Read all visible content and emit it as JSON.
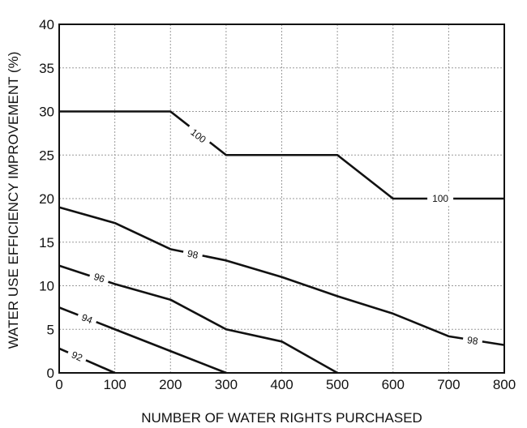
{
  "chart_data": {
    "type": "line",
    "xlabel": "NUMBER OF WATER RIGHTS PURCHASED",
    "ylabel": "WATER USE EFFICIENCY IMPROVEMENT (%)",
    "xlim": [
      0,
      800
    ],
    "ylim": [
      0,
      40
    ],
    "xticks": [
      0,
      100,
      200,
      300,
      400,
      500,
      600,
      700,
      800
    ],
    "yticks": [
      0,
      5,
      10,
      15,
      20,
      25,
      30,
      35,
      40
    ],
    "grid": true,
    "series": [
      {
        "name": "100",
        "x": [
          0,
          200,
          300,
          500,
          600,
          800
        ],
        "y": [
          30,
          30,
          25,
          25,
          20,
          20
        ],
        "labels": [
          {
            "text": "100",
            "x": 250,
            "y": 27.2
          },
          {
            "text": "100",
            "x": 685,
            "y": 20
          }
        ]
      },
      {
        "name": "98",
        "x": [
          0,
          100,
          200,
          300,
          400,
          500,
          600,
          700,
          800
        ],
        "y": [
          19,
          17.2,
          14.2,
          12.9,
          11,
          8.8,
          6.8,
          4.2,
          3.2
        ],
        "labels": [
          {
            "text": "98",
            "x": 240,
            "y": 13.6
          },
          {
            "text": "98",
            "x": 743,
            "y": 3.7
          }
        ]
      },
      {
        "name": "96",
        "x": [
          0,
          100,
          200,
          300,
          400,
          500
        ],
        "y": [
          12.3,
          10.2,
          8.4,
          5,
          3.6,
          0
        ],
        "labels": [
          {
            "text": "96",
            "x": 72,
            "y": 10.9
          }
        ]
      },
      {
        "name": "94",
        "x": [
          0,
          100,
          200,
          300
        ],
        "y": [
          7.5,
          5,
          2.5,
          0
        ],
        "labels": [
          {
            "text": "94",
            "x": 50,
            "y": 6.2
          }
        ]
      },
      {
        "name": "92",
        "x": [
          0,
          100
        ],
        "y": [
          2.8,
          0
        ],
        "labels": [
          {
            "text": "92",
            "x": 32,
            "y": 1.9
          }
        ]
      }
    ]
  }
}
